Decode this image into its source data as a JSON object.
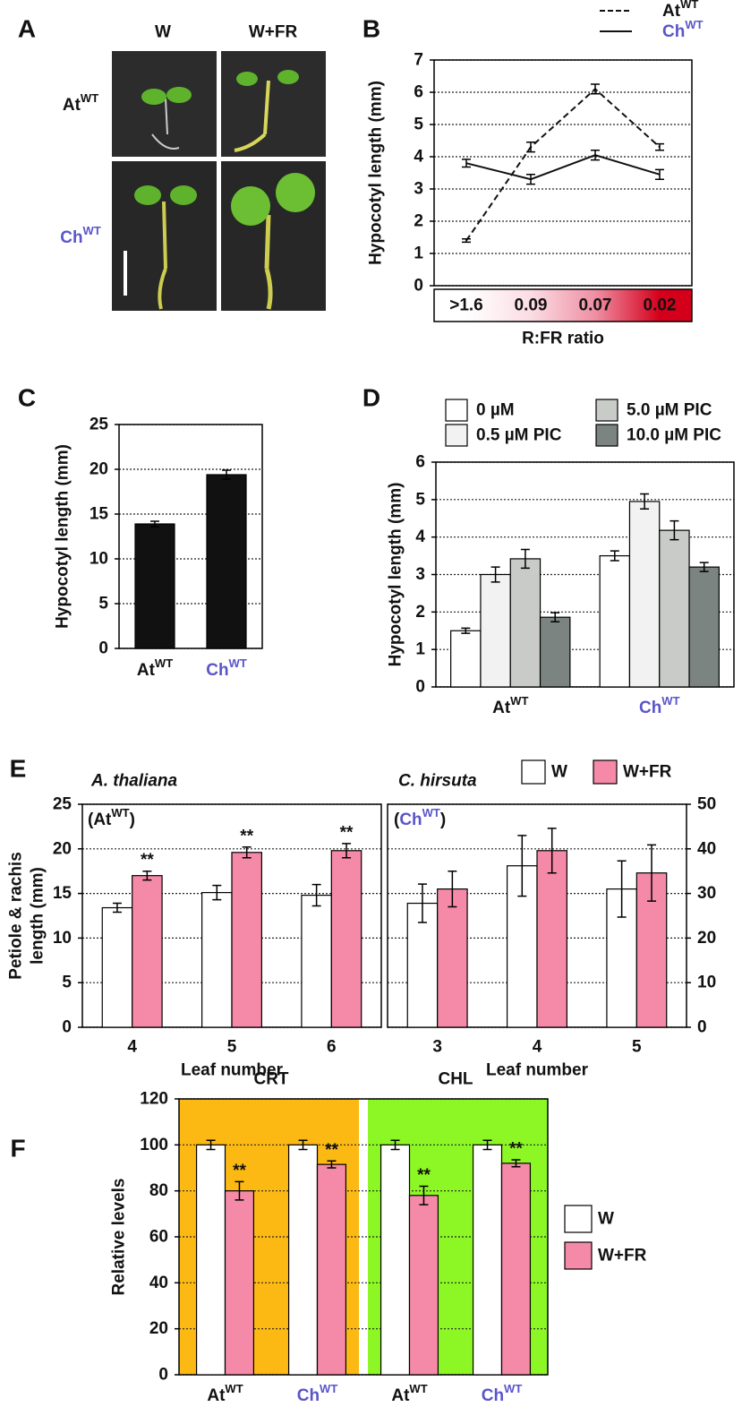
{
  "photo_panel": {
    "panel": "A",
    "columns": [
      "W",
      "W+FR"
    ],
    "rows": [
      {
        "name": "At",
        "sup": "WT"
      },
      {
        "name": "Ch",
        "sup": "WT",
        "color": "#5a55c8"
      }
    ]
  },
  "chart_data": [
    {
      "type": "line",
      "panel": "B",
      "ylabel": "Hypocotyl length (mm)",
      "xlabel": "R:FR ratio",
      "categories": [
        ">1.6",
        "0.09",
        "0.07",
        "0.02"
      ],
      "category_colors": [
        "#ffffff",
        "#fbdde4",
        "#ef8fa3",
        "#d4001b"
      ],
      "ylim": [
        0,
        7
      ],
      "yticks": [
        0,
        1,
        2,
        3,
        4,
        5,
        6,
        7
      ],
      "grid": true,
      "legend": true,
      "series": [
        {
          "name": {
            "name": "At",
            "sup": "WT"
          },
          "color": "#111111",
          "dash": true,
          "values": [
            1.4,
            4.3,
            6.1,
            4.3
          ],
          "errors": [
            0.05,
            0.15,
            0.15,
            0.1
          ]
        },
        {
          "name": {
            "name": "Ch",
            "sup": "WT",
            "color": "#5a55c8"
          },
          "color": "#111111",
          "dash": false,
          "values": [
            3.8,
            3.3,
            4.05,
            3.45
          ],
          "errors": [
            0.12,
            0.15,
            0.15,
            0.15
          ]
        }
      ]
    },
    {
      "type": "bar",
      "panel": "C",
      "ylabel": "Hypocotyl length (mm)",
      "categories": [
        {
          "name": "At",
          "sup": "WT"
        },
        {
          "name": "Ch",
          "sup": "WT",
          "color": "#5a55c8"
        }
      ],
      "ylim": [
        0,
        25
      ],
      "yticks": [
        0,
        5,
        10,
        15,
        20,
        25
      ],
      "grid": true,
      "legend": false,
      "series": [
        {
          "name": "Hypocotyl length",
          "color": "#111111",
          "values": [
            13.9,
            19.4
          ],
          "errors": [
            0.3,
            0.5
          ]
        }
      ]
    },
    {
      "type": "bar",
      "panel": "D",
      "ylabel": "Hypocotyl length (mm)",
      "categories": [
        {
          "name": "At",
          "sup": "WT"
        },
        {
          "name": "Ch",
          "sup": "WT",
          "color": "#5a55c8"
        }
      ],
      "ylim": [
        0,
        6
      ],
      "yticks": [
        0,
        1,
        2,
        3,
        4,
        5,
        6
      ],
      "grid": true,
      "legend": true,
      "series": [
        {
          "name": "0 µM",
          "color": "#ffffff",
          "values": [
            1.5,
            3.5
          ],
          "errors": [
            0.07,
            0.13
          ]
        },
        {
          "name": "0.5 µM PIC",
          "color": "#f2f2f2",
          "values": [
            3.0,
            4.95
          ],
          "errors": [
            0.2,
            0.2
          ]
        },
        {
          "name": "5.0 µM PIC",
          "color": "#c8cbc8",
          "values": [
            3.42,
            4.18
          ],
          "errors": [
            0.25,
            0.25
          ]
        },
        {
          "name": "10.0 µM PIC",
          "color": "#7b8480",
          "values": [
            1.86,
            3.2
          ],
          "errors": [
            0.12,
            0.12
          ]
        }
      ]
    },
    {
      "type": "bar",
      "panel": "E",
      "title": "A. thaliana",
      "inner_label": {
        "before": "(",
        "name": "At",
        "sup": "WT",
        "after": ")"
      },
      "ylabel": [
        "Petiole & rachis",
        "length (mm)"
      ],
      "xlabel": "Leaf number",
      "categories": [
        "4",
        "5",
        "6"
      ],
      "ylim": [
        0,
        25
      ],
      "yticks": [
        0,
        5,
        10,
        15,
        20,
        25
      ],
      "grid": true,
      "legend": false,
      "series": [
        {
          "name": "W",
          "color": "#ffffff",
          "values": [
            13.4,
            15.1,
            14.8
          ],
          "errors": [
            0.5,
            0.8,
            1.2
          ]
        },
        {
          "name": "W+FR",
          "color": "#f48aa8",
          "values": [
            17,
            19.6,
            19.8
          ],
          "errors": [
            0.5,
            0.6,
            0.8
          ],
          "significance": [
            "**",
            "**",
            "**"
          ]
        }
      ]
    },
    {
      "type": "bar",
      "title": "C. hirsuta",
      "inner_label": {
        "before": "(",
        "name": "Ch",
        "sup": "WT",
        "after": ")",
        "color": "#5a55c8"
      },
      "xlabel": "Leaf number",
      "y_axis_position": "right",
      "categories": [
        "3",
        "4",
        "5"
      ],
      "ylim": [
        0,
        50
      ],
      "yticks": [
        0,
        10,
        20,
        30,
        40,
        50
      ],
      "grid": true,
      "legend": true,
      "series": [
        {
          "name": "W",
          "color": "#ffffff",
          "values": [
            27.8,
            36.2,
            31
          ],
          "errors": [
            4.3,
            6.8,
            6.3
          ]
        },
        {
          "name": "W+FR",
          "color": "#f48aa8",
          "values": [
            31,
            39.6,
            34.6
          ],
          "errors": [
            4,
            5,
            6.3
          ]
        }
      ]
    },
    {
      "type": "bar",
      "panel": "F",
      "ylabel": "Relative levels",
      "groups": [
        {
          "name": "CRT",
          "color": "#fdb913"
        },
        {
          "name": "CHL",
          "color": "#8cf724"
        }
      ],
      "categories": [
        {
          "name": "At",
          "sup": "WT"
        },
        {
          "name": "Ch",
          "sup": "WT",
          "color": "#5a55c8"
        },
        {
          "name": "At",
          "sup": "WT"
        },
        {
          "name": "Ch",
          "sup": "WT",
          "color": "#5a55c8"
        }
      ],
      "ylim": [
        0,
        120
      ],
      "yticks": [
        0,
        20,
        40,
        60,
        80,
        100,
        120
      ],
      "grid": true,
      "legend": true,
      "series": [
        {
          "name": "W",
          "color": "#ffffff",
          "values": [
            100,
            100,
            100,
            100
          ],
          "errors": [
            2,
            2,
            2,
            2
          ]
        },
        {
          "name": "W+FR",
          "color": "#f48aa8",
          "values": [
            80,
            91.5,
            78,
            92
          ],
          "errors": [
            4,
            1.5,
            4,
            1.5
          ],
          "significance": [
            "**",
            "**",
            "**",
            "**"
          ]
        }
      ]
    }
  ]
}
